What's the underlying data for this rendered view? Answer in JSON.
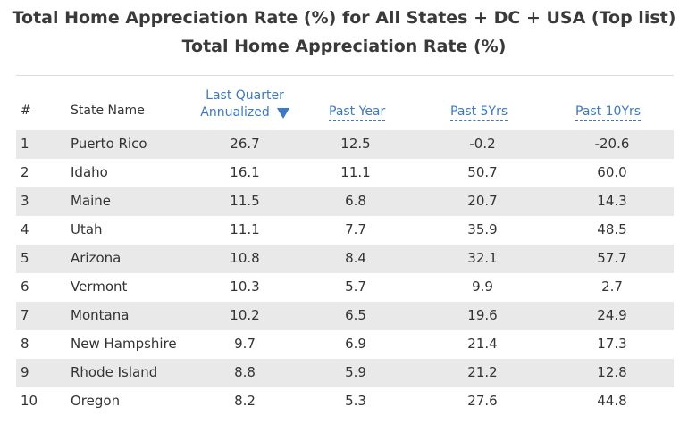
{
  "titles": {
    "line1": "Total Home Appreciation Rate (%) for All States + DC + USA (Top list)",
    "line2": "Total Home Appreciation Rate (%)"
  },
  "columns": {
    "rank": "#",
    "state": "State Name",
    "last_quarter_line1": "Last Quarter",
    "last_quarter_line2": "Annualized",
    "past_year": "Past Year",
    "past_5yrs": "Past 5Yrs",
    "past_10yrs": "Past 10Yrs"
  },
  "sort": {
    "column": "last_quarter",
    "direction": "descending",
    "icon": "sort-desc-triangle-icon",
    "accent_color": "#3a78c9"
  },
  "rows": [
    {
      "rank": "1",
      "state": "Puerto Rico",
      "last_quarter": "26.7",
      "past_year": "12.5",
      "past_5yrs": "-0.2",
      "past_10yrs": "-20.6"
    },
    {
      "rank": "2",
      "state": "Idaho",
      "last_quarter": "16.1",
      "past_year": "11.1",
      "past_5yrs": "50.7",
      "past_10yrs": "60.0"
    },
    {
      "rank": "3",
      "state": "Maine",
      "last_quarter": "11.5",
      "past_year": "6.8",
      "past_5yrs": "20.7",
      "past_10yrs": "14.3"
    },
    {
      "rank": "4",
      "state": "Utah",
      "last_quarter": "11.1",
      "past_year": "7.7",
      "past_5yrs": "35.9",
      "past_10yrs": "48.5"
    },
    {
      "rank": "5",
      "state": "Arizona",
      "last_quarter": "10.8",
      "past_year": "8.4",
      "past_5yrs": "32.1",
      "past_10yrs": "57.7"
    },
    {
      "rank": "6",
      "state": "Vermont",
      "last_quarter": "10.3",
      "past_year": "5.7",
      "past_5yrs": "9.9",
      "past_10yrs": "2.7"
    },
    {
      "rank": "7",
      "state": "Montana",
      "last_quarter": "10.2",
      "past_year": "6.5",
      "past_5yrs": "19.6",
      "past_10yrs": "24.9"
    },
    {
      "rank": "8",
      "state": "New Hampshire",
      "last_quarter": "9.7",
      "past_year": "6.9",
      "past_5yrs": "21.4",
      "past_10yrs": "17.3"
    },
    {
      "rank": "9",
      "state": "Rhode Island",
      "last_quarter": "8.8",
      "past_year": "5.9",
      "past_5yrs": "21.2",
      "past_10yrs": "12.8"
    },
    {
      "rank": "10",
      "state": "Oregon",
      "last_quarter": "8.2",
      "past_year": "5.3",
      "past_5yrs": "27.6",
      "past_10yrs": "44.8"
    }
  ]
}
